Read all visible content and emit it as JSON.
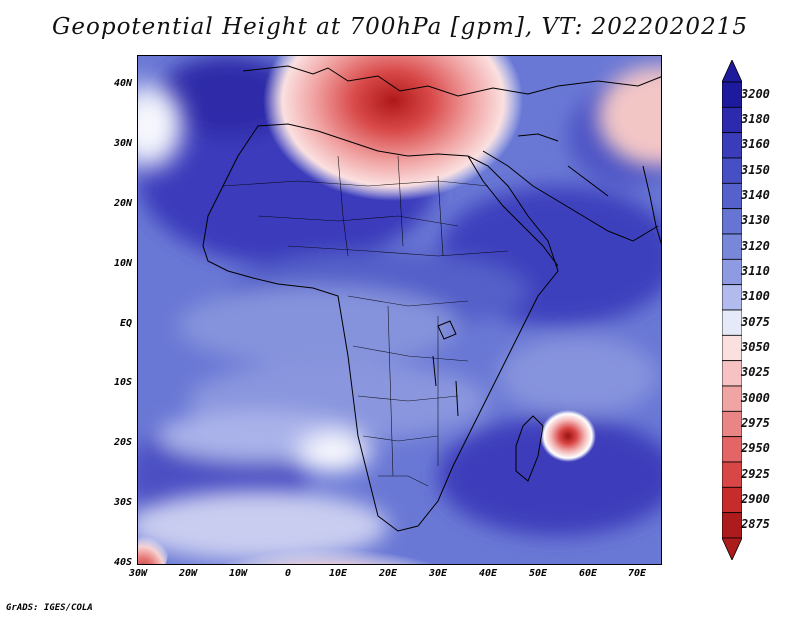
{
  "title": "Geopotential Height at 700hPa [gpm], VT: 2022020215",
  "footer": "GrADS: IGES/COLA",
  "map": {
    "projection": "lat-lon",
    "lon_range": [
      -30,
      75
    ],
    "lat_range": [
      -40,
      45
    ],
    "lat_labels": [
      "40N",
      "30N",
      "20N",
      "10N",
      "EQ",
      "10S",
      "20S",
      "30S",
      "40S"
    ],
    "lon_labels": [
      "30W",
      "20W",
      "10W",
      "0",
      "10E",
      "20E",
      "30E",
      "40E",
      "50E",
      "60E",
      "70E"
    ],
    "field_palette": "blue (high) to red (low) diverging shading"
  },
  "colorbar": {
    "levels": [
      "3200",
      "3180",
      "3160",
      "3150",
      "3140",
      "3130",
      "3120",
      "3110",
      "3100",
      "3075",
      "3050",
      "3025",
      "3000",
      "2975",
      "2950",
      "2925",
      "2900",
      "2875"
    ],
    "colors": [
      "#1d1a9e",
      "#2c2aad",
      "#3a3cba",
      "#4650c4",
      "#5562cc",
      "#6675d3",
      "#7987da",
      "#8e9ae1",
      "#b2bbed",
      "#e6e9f7",
      "#fbe0e0",
      "#f6c2c2",
      "#f0a4a4",
      "#ea8585",
      "#e36565",
      "#d84646",
      "#c72c2c",
      "#ad1c1c"
    ]
  }
}
